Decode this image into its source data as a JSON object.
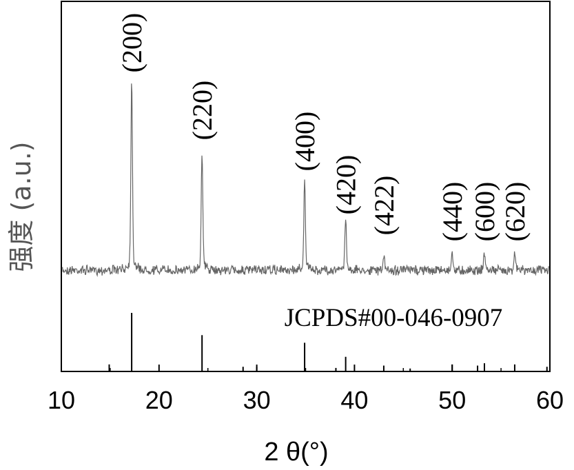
{
  "chart_data": {
    "type": "line",
    "xlabel": "2 θ(°)",
    "ylabel": "强度 (a.u.)",
    "xlim": [
      10,
      60
    ],
    "xticks": [
      "10",
      "20",
      "30",
      "40",
      "50",
      "60"
    ],
    "grid": false,
    "colors": {
      "pattern": "#666666",
      "reference": "#000000",
      "axes": "#000000"
    },
    "series": [
      {
        "peaks": [
          {
            "x": 17.2,
            "y": 100,
            "label": "(200)"
          },
          {
            "x": 24.4,
            "y": 63,
            "label": "(220)"
          },
          {
            "x": 34.9,
            "y": 47,
            "label": "(400)"
          },
          {
            "x": 39.1,
            "y": 28,
            "label": "(420)"
          },
          {
            "x": 43.0,
            "y": 7,
            "label": "(422)"
          },
          {
            "x": 50.0,
            "y": 9,
            "label": "(440)"
          },
          {
            "x": 53.3,
            "y": 9,
            "label": "(600)"
          },
          {
            "x": 56.4,
            "y": 10,
            "label": "(620)"
          }
        ]
      }
    ],
    "reference": {
      "name": "JCPDS#00-046-0907",
      "lines": [
        {
          "x": 14.9,
          "y": 12
        },
        {
          "x": 17.2,
          "y": 100
        },
        {
          "x": 24.4,
          "y": 62
        },
        {
          "x": 28.6,
          "y": 8
        },
        {
          "x": 30.0,
          "y": 8
        },
        {
          "x": 34.9,
          "y": 49
        },
        {
          "x": 38.1,
          "y": 6
        },
        {
          "x": 39.1,
          "y": 25
        },
        {
          "x": 43.0,
          "y": 10
        },
        {
          "x": 45.7,
          "y": 5
        },
        {
          "x": 50.0,
          "y": 12
        },
        {
          "x": 52.6,
          "y": 10
        },
        {
          "x": 53.3,
          "y": 14
        },
        {
          "x": 56.4,
          "y": 12
        },
        {
          "x": 59.7,
          "y": 8
        }
      ]
    }
  }
}
